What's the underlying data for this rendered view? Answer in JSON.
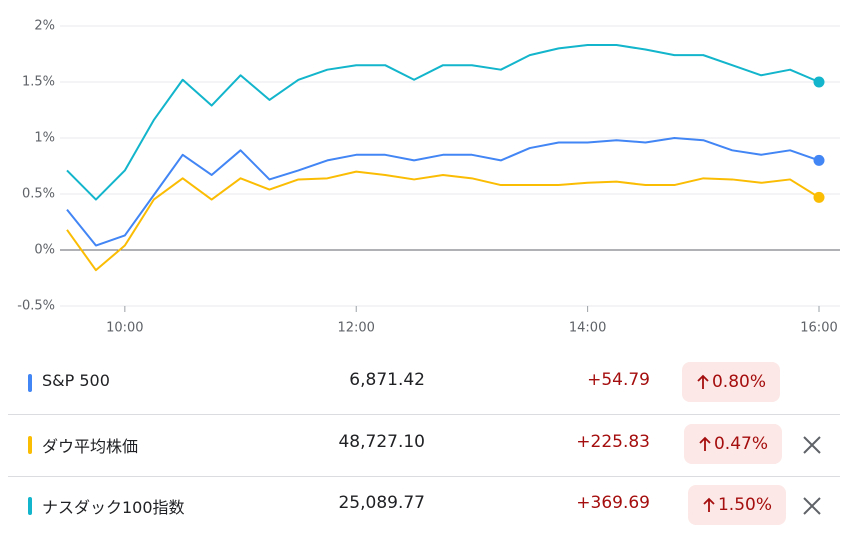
{
  "chart_data": {
    "type": "line",
    "x": [
      570,
      585,
      600,
      615,
      630,
      645,
      660,
      675,
      690,
      705,
      720,
      735,
      750,
      765,
      780,
      795,
      810,
      825,
      840,
      855,
      870,
      885,
      900,
      915,
      930,
      945,
      960
    ],
    "xlim": [
      570,
      960
    ],
    "xticks": [
      {
        "value": 600,
        "label": "10:00"
      },
      {
        "value": 720,
        "label": "12:00"
      },
      {
        "value": 840,
        "label": "14:00"
      },
      {
        "value": 960,
        "label": "16:00"
      }
    ],
    "ylim": [
      -0.5,
      2
    ],
    "yticks": [
      {
        "value": -0.5,
        "label": "-0.5%"
      },
      {
        "value": 0,
        "label": "0%"
      },
      {
        "value": 0.5,
        "label": "0.5%"
      },
      {
        "value": 1,
        "label": "1%"
      },
      {
        "value": 1.5,
        "label": "1.5%"
      },
      {
        "value": 2,
        "label": "2%"
      }
    ],
    "grid": true,
    "series": [
      {
        "name": "S&P 500",
        "color": "#4285f4",
        "values": [
          0.36,
          0.04,
          0.13,
          0.49,
          0.85,
          0.67,
          0.89,
          0.63,
          0.71,
          0.8,
          0.85,
          0.85,
          0.8,
          0.85,
          0.85,
          0.8,
          0.91,
          0.96,
          0.96,
          0.98,
          0.96,
          1.0,
          0.98,
          0.89,
          0.85,
          0.89,
          0.8
        ]
      },
      {
        "name": "ダウ平均株価",
        "color": "#fbbc04",
        "values": [
          0.18,
          -0.18,
          0.04,
          0.45,
          0.64,
          0.45,
          0.64,
          0.54,
          0.63,
          0.64,
          0.7,
          0.67,
          0.63,
          0.67,
          0.64,
          0.58,
          0.58,
          0.58,
          0.6,
          0.61,
          0.58,
          0.58,
          0.64,
          0.63,
          0.6,
          0.63,
          0.47
        ]
      },
      {
        "name": "ナスダック100指数",
        "color": "#12b5cb",
        "values": [
          0.71,
          0.45,
          0.71,
          1.16,
          1.52,
          1.29,
          1.56,
          1.34,
          1.52,
          1.61,
          1.65,
          1.65,
          1.52,
          1.65,
          1.65,
          1.61,
          1.74,
          1.8,
          1.83,
          1.83,
          1.79,
          1.74,
          1.74,
          1.65,
          1.56,
          1.61,
          1.5
        ]
      }
    ]
  },
  "table": {
    "rows": [
      {
        "price": "6,871.42",
        "change": "+54.79",
        "percent": "0.80%"
      },
      {
        "price": "48,727.10",
        "change": "+225.83",
        "percent": "0.47%"
      },
      {
        "price": "25,089.77",
        "change": "+369.69",
        "percent": "1.50%"
      }
    ]
  }
}
